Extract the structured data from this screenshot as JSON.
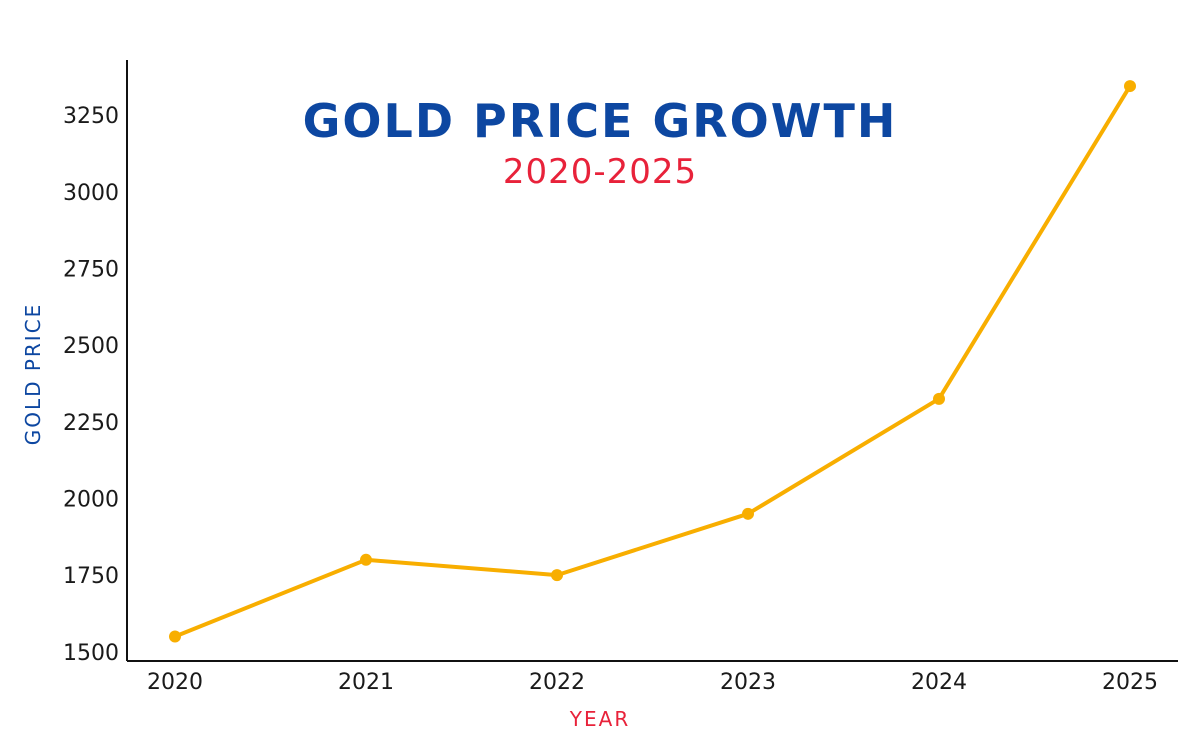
{
  "colors": {
    "title": "#0d47a1",
    "subtitle": "#e8223a",
    "ylabel": "#0d47a1",
    "xlabel": "#e8223a",
    "line": "#f8ae00",
    "axis": "#111111",
    "tick_text": "#1a1a1a"
  },
  "chart_data": {
    "type": "line",
    "title": "GOLD PRICE GROWTH",
    "subtitle": "2020-2025",
    "xlabel": "YEAR",
    "ylabel": "GOLD PRICE",
    "categories": [
      "2020",
      "2021",
      "2022",
      "2023",
      "2024",
      "2025"
    ],
    "series": [
      {
        "values": [
          1550,
          1800,
          1750,
          1950,
          2325,
          3345
        ]
      }
    ],
    "yticks": [
      1500,
      1750,
      2000,
      2250,
      2500,
      2750,
      3000,
      3250
    ],
    "ylim": [
      1470,
      3430
    ],
    "grid": false,
    "markers": true
  }
}
